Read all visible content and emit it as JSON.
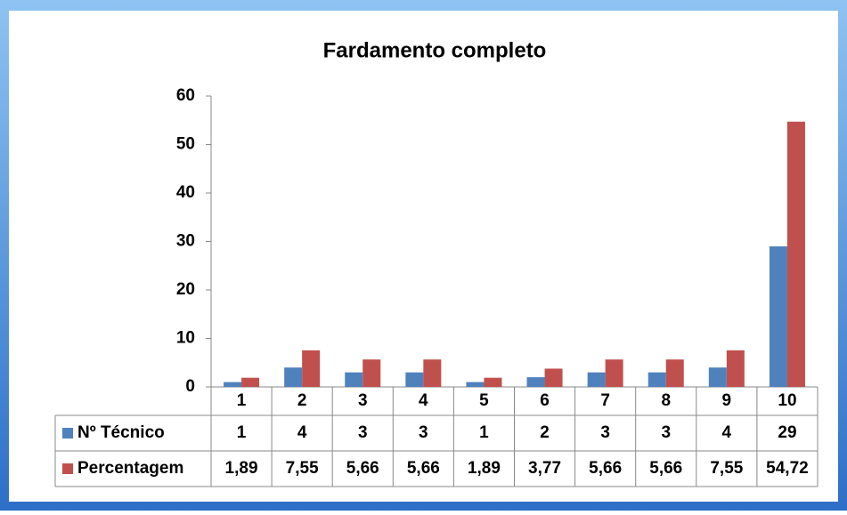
{
  "chart_data": {
    "type": "bar",
    "title": "Fardamento completo",
    "categories": [
      "1",
      "2",
      "3",
      "4",
      "5",
      "6",
      "7",
      "8",
      "9",
      "10"
    ],
    "series": [
      {
        "name": "Nº Técnico",
        "color": "#4f81bd",
        "values": [
          1,
          4,
          3,
          3,
          1,
          2,
          3,
          3,
          4,
          29
        ]
      },
      {
        "name": "Percentagem",
        "color": "#c0504d",
        "values": [
          1.89,
          7.55,
          5.66,
          5.66,
          1.89,
          3.77,
          5.66,
          5.66,
          7.55,
          54.72
        ],
        "value_labels": [
          "1,89",
          "7,55",
          "5,66",
          "5,66",
          "1,89",
          "3,77",
          "5,66",
          "5,66",
          "7,55",
          "54,72"
        ]
      }
    ],
    "ylim": [
      0,
      60
    ],
    "yticks": [
      0,
      10,
      20,
      30,
      40,
      50,
      60
    ],
    "grid": false
  }
}
